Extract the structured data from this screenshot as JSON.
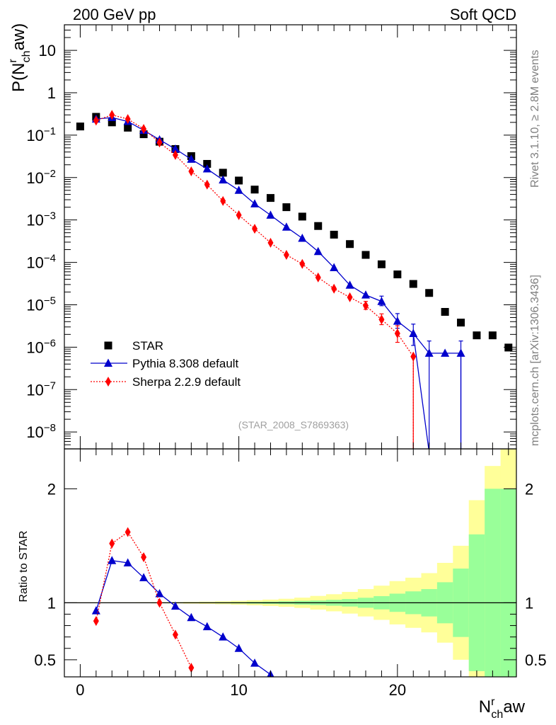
{
  "header": {
    "left": "200 GeV pp",
    "right": "Soft QCD"
  },
  "side_labels": {
    "rivet": "Rivet 3.1.10, ≥ 2.8M events",
    "mcplots": "mcplots.cern.ch [arXiv:1306.3436]"
  },
  "analysis_tag": "(STAR_2008_S7869363)",
  "chart_data": [
    {
      "type": "scatter",
      "panel": "main",
      "ylabel": "P(N^r_ch aw)",
      "yscale": "log",
      "ylim": [
        4e-09,
        40
      ],
      "xlim": [
        -1,
        27.5
      ],
      "yticks": [
        {
          "v": 1e-08,
          "b": "10",
          "e": "−8"
        },
        {
          "v": 1e-07,
          "b": "10",
          "e": "−7"
        },
        {
          "v": 1e-06,
          "b": "10",
          "e": "−6"
        },
        {
          "v": 1e-05,
          "b": "10",
          "e": "−5"
        },
        {
          "v": 0.0001,
          "b": "10",
          "e": "−4"
        },
        {
          "v": 0.001,
          "b": "10",
          "e": "−3"
        },
        {
          "v": 0.01,
          "b": "10",
          "e": "−2"
        },
        {
          "v": 0.1,
          "b": "10",
          "e": "−1"
        },
        {
          "v": 1,
          "b": "1",
          "e": ""
        },
        {
          "v": 10,
          "b": "10",
          "e": ""
        }
      ],
      "legend_position": "bottom-left",
      "series": [
        {
          "name": "STAR",
          "color": "#000000",
          "marker": "square",
          "x": [
            0,
            1,
            2,
            3,
            4,
            5,
            6,
            7,
            8,
            9,
            10,
            11,
            12,
            13,
            14,
            15,
            16,
            17,
            18,
            19,
            20,
            21,
            22,
            23,
            24,
            25,
            26,
            27
          ],
          "y": [
            0.16,
            0.27,
            0.2,
            0.15,
            0.105,
            0.07,
            0.047,
            0.032,
            0.021,
            0.013,
            0.0085,
            0.0052,
            0.0033,
            0.002,
            0.0012,
            0.00072,
            0.00045,
            0.00027,
            0.00015,
            9e-05,
            5.2e-05,
            3.1e-05,
            1.9e-05,
            6.8e-06,
            3.8e-06,
            1.9e-06,
            1.9e-06,
            9.8e-07
          ]
        },
        {
          "name": "Pythia 8.308 default",
          "color": "#0000cc",
          "marker": "triangle",
          "line": "solid",
          "x": [
            1,
            2,
            3,
            4,
            5,
            6,
            7,
            8,
            9,
            10,
            11,
            12,
            13,
            14,
            15,
            16,
            17,
            18,
            19,
            20,
            21,
            22,
            23,
            24
          ],
          "y": [
            0.24,
            0.26,
            0.21,
            0.13,
            0.078,
            0.047,
            0.027,
            0.016,
            0.0088,
            0.005,
            0.0024,
            0.0013,
            0.00068,
            0.00037,
            0.00018,
            7.5e-05,
            2.9e-05,
            1.7e-05,
            1.2e-05,
            4.1e-06,
            2.1e-06,
            7.2e-07,
            7.2e-07,
            7.2e-07
          ],
          "yerr_high": [
            null,
            null,
            null,
            null,
            null,
            null,
            null,
            null,
            null,
            null,
            null,
            null,
            null,
            null,
            null,
            null,
            null,
            null,
            1.6e-05,
            6.2e-06,
            3.5e-06,
            1.4e-06,
            null,
            1.4e-06
          ],
          "yerr_low": [
            null,
            null,
            null,
            null,
            null,
            null,
            null,
            null,
            null,
            null,
            null,
            null,
            null,
            null,
            null,
            null,
            null,
            null,
            9.5e-06,
            2.8e-06,
            1.1e-06,
            0,
            null,
            0
          ]
        },
        {
          "name": "Sherpa 2.2.9 default",
          "color": "#ff0000",
          "marker": "diamond",
          "line": "dotted",
          "x": [
            1,
            2,
            3,
            4,
            5,
            6,
            7,
            8,
            9,
            10,
            11,
            12,
            13,
            14,
            15,
            16,
            17,
            18,
            19,
            20,
            21
          ],
          "y": [
            0.22,
            0.3,
            0.24,
            0.14,
            0.067,
            0.034,
            0.014,
            0.0068,
            0.0028,
            0.0013,
            0.00062,
            0.00029,
            0.00015,
            9.2e-05,
            4.4e-05,
            2.4e-05,
            1.5e-05,
            9.5e-06,
            4.5e-06,
            2.1e-06,
            6e-07
          ],
          "yerr_high": [
            null,
            null,
            null,
            null,
            null,
            null,
            null,
            null,
            null,
            null,
            null,
            null,
            null,
            null,
            null,
            null,
            null,
            1.2e-05,
            6.1e-06,
            3.2e-06,
            null
          ],
          "yerr_low": [
            null,
            null,
            null,
            null,
            null,
            null,
            null,
            null,
            null,
            null,
            null,
            null,
            null,
            null,
            null,
            null,
            null,
            7.8e-06,
            3.4e-06,
            1.3e-06,
            0
          ]
        }
      ]
    },
    {
      "type": "scatter",
      "panel": "ratio",
      "ylabel": "Ratio to STAR",
      "xlabel": "N^r_ch aw",
      "ylim": [
        0.35,
        2.35
      ],
      "xlim": [
        -1,
        27.5
      ],
      "xticks": [
        0,
        10,
        20
      ],
      "yticks": [
        0.5,
        1,
        2
      ],
      "reference_line": 1,
      "bands": {
        "bin_edges": [
          -0.5,
          0.5,
          1.5,
          2.5,
          3.5,
          4.5,
          5.5,
          6.5,
          7.5,
          8.5,
          9.5,
          10.5,
          11.5,
          12.5,
          13.5,
          14.5,
          15.5,
          16.5,
          17.5,
          18.5,
          19.5,
          20.5,
          21.5,
          22.5,
          23.5,
          24.5,
          25.5,
          26.5,
          27.5
        ],
        "green_half_width": [
          0.002,
          0.002,
          0.002,
          0.002,
          0.002,
          0.003,
          0.003,
          0.003,
          0.004,
          0.005,
          0.006,
          0.008,
          0.01,
          0.013,
          0.017,
          0.02,
          0.026,
          0.033,
          0.044,
          0.058,
          0.08,
          0.1,
          0.12,
          0.18,
          0.3,
          0.6,
          1.0,
          1.0
        ],
        "yellow_half_width": [
          0.003,
          0.003,
          0.003,
          0.003,
          0.004,
          0.005,
          0.006,
          0.008,
          0.01,
          0.013,
          0.017,
          0.022,
          0.028,
          0.035,
          0.045,
          0.06,
          0.075,
          0.095,
          0.12,
          0.15,
          0.19,
          0.22,
          0.26,
          0.35,
          0.5,
          0.9,
          1.2,
          1.4
        ],
        "green_color": "#99ff99",
        "yellow_color": "#ffff99"
      },
      "series": [
        {
          "name": "Pythia 8.308 default",
          "color": "#0000cc",
          "x": [
            1,
            2,
            3,
            4,
            5,
            6,
            7,
            8,
            9,
            10,
            11,
            12
          ],
          "y": [
            0.93,
            1.37,
            1.35,
            1.22,
            1.08,
            0.97,
            0.87,
            0.79,
            0.7,
            0.6,
            0.47,
            0.37
          ]
        },
        {
          "name": "Sherpa 2.2.9 default",
          "color": "#ff0000",
          "x": [
            1,
            2,
            3,
            4,
            5,
            6,
            7
          ],
          "y": [
            0.84,
            1.52,
            1.62,
            1.4,
            1.0,
            0.72,
            0.43
          ]
        }
      ]
    }
  ]
}
